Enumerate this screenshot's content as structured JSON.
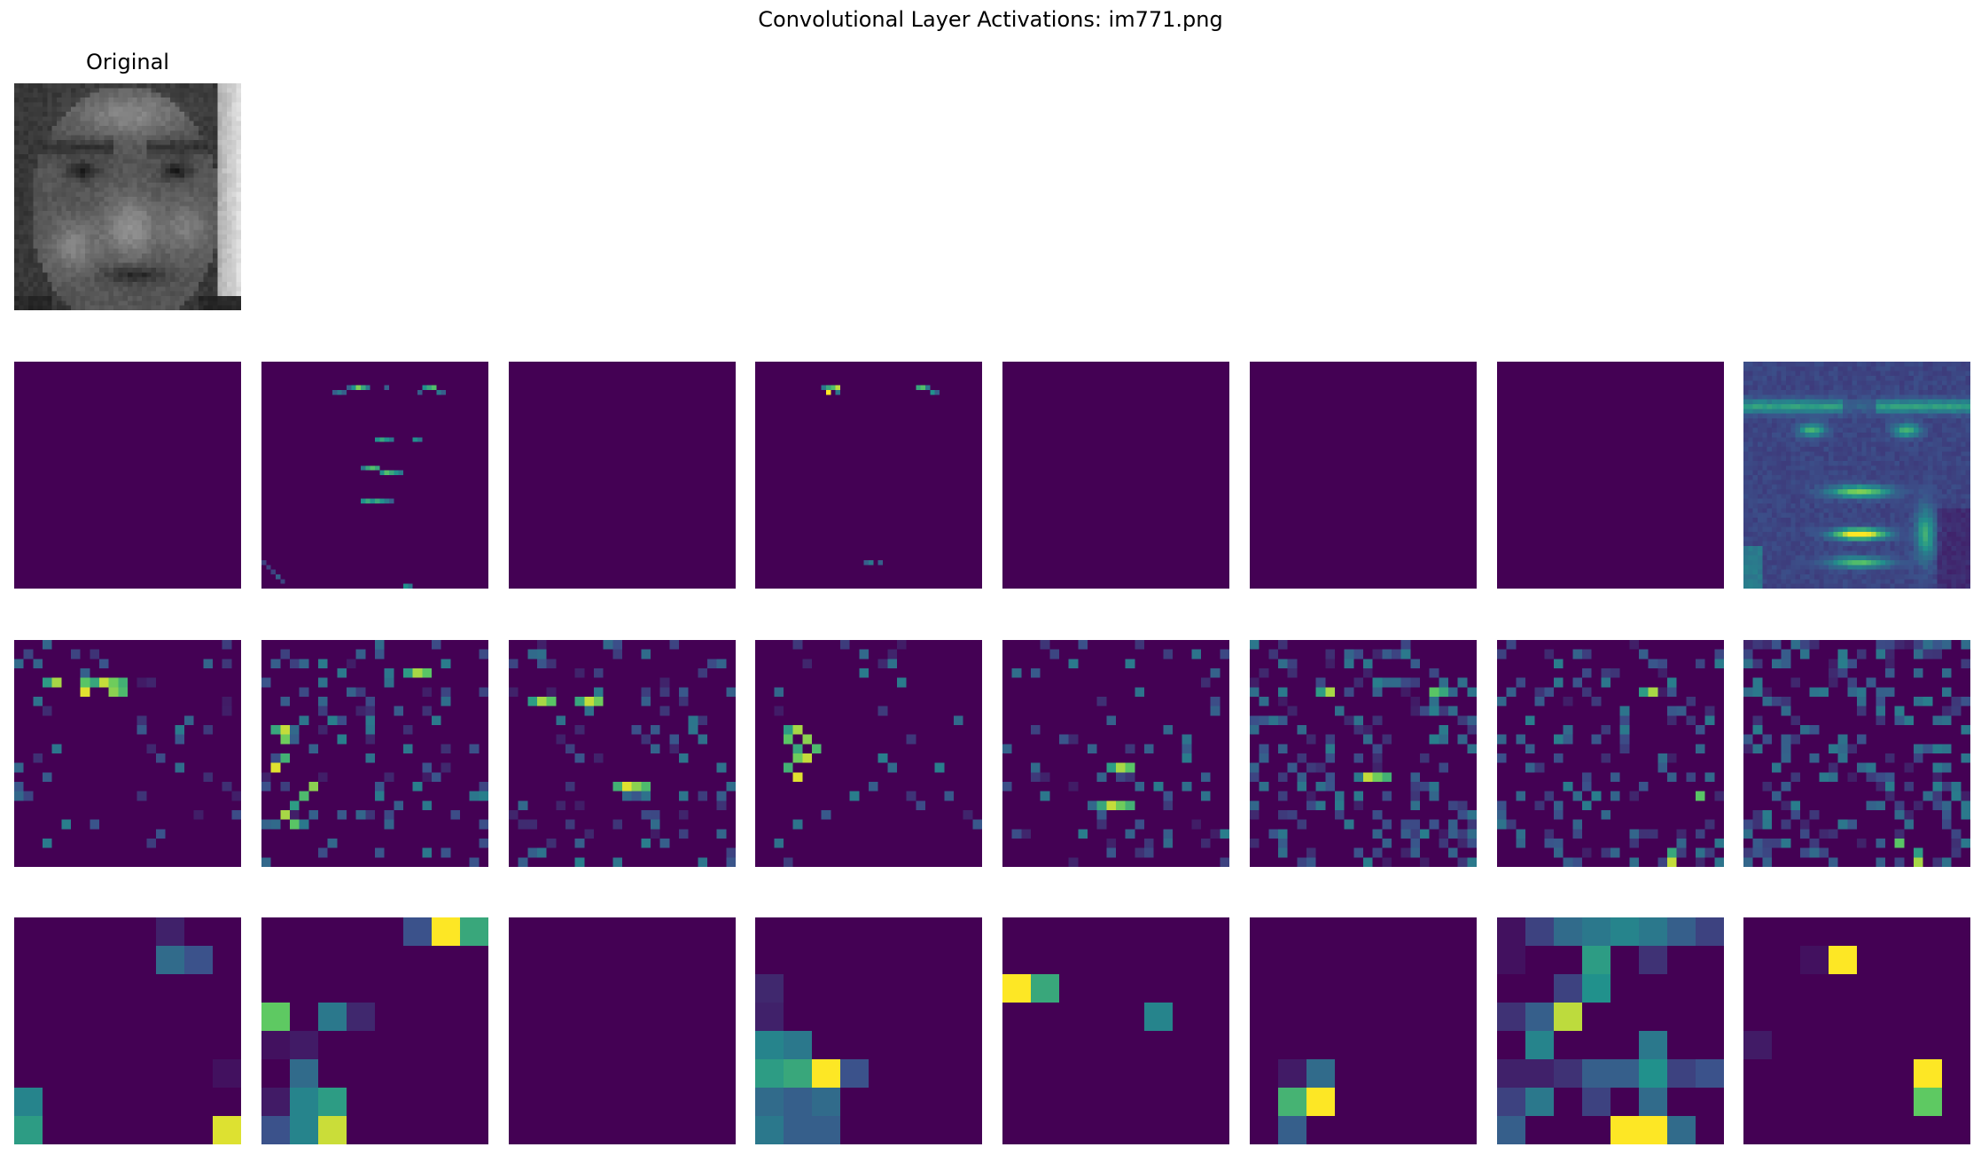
{
  "figure": {
    "suptitle": "Convolutional Layer Activations: im771.png",
    "original_title": "Original"
  },
  "colormap": {
    "name": "viridis",
    "stops": [
      "#440154",
      "#3b528b",
      "#21918c",
      "#5ec962",
      "#fde725"
    ]
  },
  "panels": {
    "original": {
      "type": "grayscale-face",
      "rows": 48,
      "cols": 48
    },
    "layer1": [
      {
        "map": "blank"
      },
      {
        "map": "sparse",
        "values": [
          [
            5,
            18,
            0.3
          ],
          [
            5,
            19,
            0.5
          ],
          [
            5,
            20,
            0.8
          ],
          [
            5,
            21,
            0.6
          ],
          [
            5,
            22,
            0.4
          ],
          [
            6,
            15,
            0.3
          ],
          [
            6,
            16,
            0.4
          ],
          [
            6,
            17,
            0.3
          ],
          [
            5,
            26,
            0.3
          ],
          [
            5,
            34,
            0.5
          ],
          [
            5,
            35,
            0.6
          ],
          [
            5,
            36,
            0.7
          ],
          [
            6,
            37,
            0.4
          ],
          [
            6,
            38,
            0.3
          ],
          [
            6,
            33,
            0.3
          ],
          [
            16,
            24,
            0.5
          ],
          [
            16,
            25,
            0.6
          ],
          [
            16,
            26,
            0.5
          ],
          [
            16,
            27,
            0.4
          ],
          [
            16,
            32,
            0.5
          ],
          [
            16,
            33,
            0.4
          ],
          [
            22,
            21,
            0.4
          ],
          [
            22,
            22,
            0.6
          ],
          [
            22,
            23,
            0.7
          ],
          [
            22,
            24,
            0.6
          ],
          [
            23,
            25,
            0.5
          ],
          [
            23,
            26,
            0.7
          ],
          [
            23,
            27,
            0.6
          ],
          [
            23,
            28,
            0.5
          ],
          [
            23,
            29,
            0.4
          ],
          [
            29,
            21,
            0.5
          ],
          [
            29,
            22,
            0.6
          ],
          [
            29,
            23,
            0.5
          ],
          [
            29,
            24,
            0.6
          ],
          [
            29,
            25,
            0.5
          ],
          [
            29,
            26,
            0.4
          ],
          [
            29,
            27,
            0.3
          ],
          [
            42,
            0,
            0.2
          ],
          [
            43,
            1,
            0.2
          ],
          [
            44,
            2,
            0.2
          ],
          [
            45,
            3,
            0.3
          ],
          [
            46,
            4,
            0.2
          ],
          [
            47,
            30,
            0.5
          ],
          [
            47,
            31,
            0.4
          ]
        ]
      },
      {
        "map": "blank"
      },
      {
        "map": "sparse",
        "values": [
          [
            5,
            14,
            0.4
          ],
          [
            5,
            15,
            0.6
          ],
          [
            5,
            16,
            0.7
          ],
          [
            5,
            17,
            0.9
          ],
          [
            6,
            15,
            1.0
          ],
          [
            6,
            17,
            0.4
          ],
          [
            5,
            34,
            0.6
          ],
          [
            5,
            35,
            0.7
          ],
          [
            5,
            36,
            0.4
          ],
          [
            6,
            37,
            0.5
          ],
          [
            6,
            38,
            0.3
          ],
          [
            42,
            23,
            0.3
          ],
          [
            42,
            24,
            0.4
          ],
          [
            42,
            26,
            0.3
          ]
        ]
      },
      {
        "map": "blank"
      },
      {
        "map": "blank"
      },
      {
        "map": "blank"
      },
      {
        "map": "dense-face",
        "base": 0.18
      }
    ],
    "layer2": [
      {
        "map": "grid",
        "rows": 24,
        "cols": 24,
        "seed": 11,
        "density": 0.08,
        "hot": [
          [
            4,
            3
          ],
          [
            4,
            4
          ],
          [
            4,
            7
          ],
          [
            4,
            8
          ],
          [
            4,
            9
          ],
          [
            4,
            10
          ],
          [
            4,
            11
          ],
          [
            5,
            7
          ],
          [
            5,
            10
          ],
          [
            5,
            11
          ]
        ]
      },
      {
        "map": "grid",
        "rows": 24,
        "cols": 24,
        "seed": 23,
        "density": 0.12,
        "hot": [
          [
            3,
            15
          ],
          [
            3,
            16
          ],
          [
            3,
            17
          ],
          [
            9,
            1
          ],
          [
            9,
            2
          ],
          [
            10,
            2
          ],
          [
            12,
            2
          ],
          [
            13,
            1
          ],
          [
            15,
            5
          ],
          [
            16,
            4
          ],
          [
            17,
            3
          ],
          [
            18,
            2
          ],
          [
            19,
            3
          ]
        ]
      },
      {
        "map": "grid",
        "rows": 24,
        "cols": 24,
        "seed": 37,
        "density": 0.14,
        "hot": [
          [
            6,
            2
          ],
          [
            6,
            3
          ],
          [
            6,
            4
          ],
          [
            6,
            7
          ],
          [
            6,
            8
          ],
          [
            6,
            9
          ],
          [
            15,
            11
          ],
          [
            15,
            12
          ],
          [
            15,
            13
          ],
          [
            15,
            14
          ]
        ]
      },
      {
        "map": "grid",
        "rows": 24,
        "cols": 24,
        "seed": 49,
        "density": 0.06,
        "hot": [
          [
            9,
            3
          ],
          [
            9,
            4
          ],
          [
            10,
            3
          ],
          [
            11,
            4
          ],
          [
            12,
            5
          ],
          [
            12,
            4
          ],
          [
            13,
            3
          ],
          [
            14,
            4
          ],
          [
            10,
            5
          ],
          [
            11,
            6
          ]
        ]
      },
      {
        "map": "grid",
        "rows": 24,
        "cols": 24,
        "seed": 61,
        "density": 0.14,
        "hot": [
          [
            13,
            11
          ],
          [
            13,
            12
          ],
          [
            13,
            13
          ],
          [
            17,
            10
          ],
          [
            17,
            11
          ],
          [
            17,
            12
          ],
          [
            17,
            13
          ]
        ]
      },
      {
        "map": "grid",
        "rows": 24,
        "cols": 24,
        "seed": 73,
        "density": 0.28,
        "hot": [
          [
            5,
            7
          ],
          [
            5,
            8
          ],
          [
            5,
            19
          ],
          [
            5,
            20
          ],
          [
            14,
            12
          ],
          [
            14,
            13
          ],
          [
            14,
            14
          ]
        ]
      },
      {
        "map": "grid",
        "rows": 24,
        "cols": 24,
        "seed": 87,
        "density": 0.2,
        "hot": [
          [
            5,
            15
          ],
          [
            5,
            16
          ],
          [
            16,
            21
          ],
          [
            22,
            18
          ],
          [
            23,
            18
          ]
        ]
      },
      {
        "map": "grid",
        "rows": 24,
        "cols": 24,
        "seed": 97,
        "density": 0.3,
        "hot": [
          [
            22,
            18
          ],
          [
            23,
            18
          ],
          [
            21,
            16
          ]
        ]
      }
    ],
    "layer3": [
      {
        "map": "cells",
        "rows": 8,
        "cols": 8,
        "cells": [
          [
            0,
            5,
            0.1
          ],
          [
            1,
            5,
            0.35
          ],
          [
            1,
            6,
            0.25
          ],
          [
            5,
            7,
            0.05
          ],
          [
            6,
            0,
            0.45
          ],
          [
            7,
            0,
            0.55
          ],
          [
            7,
            7,
            0.95
          ]
        ]
      },
      {
        "map": "cells",
        "rows": 8,
        "cols": 8,
        "cells": [
          [
            0,
            5,
            0.25
          ],
          [
            0,
            6,
            1.0
          ],
          [
            0,
            7,
            0.6
          ],
          [
            3,
            0,
            0.75
          ],
          [
            3,
            2,
            0.4
          ],
          [
            3,
            3,
            0.12
          ],
          [
            4,
            0,
            0.05
          ],
          [
            4,
            1,
            0.08
          ],
          [
            5,
            1,
            0.35
          ],
          [
            6,
            0,
            0.08
          ],
          [
            6,
            1,
            0.45
          ],
          [
            6,
            2,
            0.55
          ],
          [
            7,
            0,
            0.25
          ],
          [
            7,
            1,
            0.45
          ],
          [
            7,
            2,
            0.92
          ]
        ]
      },
      {
        "map": "cells",
        "rows": 8,
        "cols": 8,
        "cells": []
      },
      {
        "map": "cells",
        "rows": 8,
        "cols": 8,
        "cells": [
          [
            2,
            0,
            0.12
          ],
          [
            3,
            0,
            0.1
          ],
          [
            4,
            0,
            0.45
          ],
          [
            4,
            1,
            0.4
          ],
          [
            5,
            0,
            0.55
          ],
          [
            5,
            1,
            0.6
          ],
          [
            5,
            2,
            1.0
          ],
          [
            5,
            3,
            0.25
          ],
          [
            6,
            0,
            0.35
          ],
          [
            6,
            1,
            0.3
          ],
          [
            6,
            2,
            0.35
          ],
          [
            7,
            0,
            0.4
          ],
          [
            7,
            1,
            0.3
          ],
          [
            7,
            2,
            0.3
          ]
        ]
      },
      {
        "map": "cells",
        "rows": 8,
        "cols": 8,
        "cells": [
          [
            2,
            0,
            1.0
          ],
          [
            2,
            1,
            0.6
          ],
          [
            3,
            5,
            0.45
          ]
        ]
      },
      {
        "map": "cells",
        "rows": 8,
        "cols": 8,
        "cells": [
          [
            5,
            1,
            0.08
          ],
          [
            5,
            2,
            0.35
          ],
          [
            6,
            1,
            0.65
          ],
          [
            6,
            2,
            1.0
          ],
          [
            7,
            1,
            0.3
          ]
        ]
      },
      {
        "map": "cells",
        "rows": 8,
        "cols": 8,
        "cells": [
          [
            0,
            0,
            0.05
          ],
          [
            0,
            1,
            0.2
          ],
          [
            0,
            2,
            0.35
          ],
          [
            0,
            3,
            0.4
          ],
          [
            0,
            4,
            0.45
          ],
          [
            0,
            5,
            0.4
          ],
          [
            0,
            6,
            0.3
          ],
          [
            0,
            7,
            0.2
          ],
          [
            1,
            0,
            0.05
          ],
          [
            1,
            3,
            0.55
          ],
          [
            1,
            5,
            0.15
          ],
          [
            2,
            2,
            0.2
          ],
          [
            2,
            3,
            0.5
          ],
          [
            3,
            0,
            0.15
          ],
          [
            3,
            1,
            0.3
          ],
          [
            3,
            2,
            0.9
          ],
          [
            4,
            1,
            0.45
          ],
          [
            4,
            5,
            0.4
          ],
          [
            5,
            0,
            0.1
          ],
          [
            5,
            1,
            0.1
          ],
          [
            5,
            2,
            0.15
          ],
          [
            5,
            3,
            0.3
          ],
          [
            5,
            4,
            0.3
          ],
          [
            5,
            5,
            0.5
          ],
          [
            5,
            6,
            0.2
          ],
          [
            5,
            7,
            0.25
          ],
          [
            6,
            0,
            0.2
          ],
          [
            6,
            1,
            0.4
          ],
          [
            6,
            3,
            0.2
          ],
          [
            6,
            5,
            0.35
          ],
          [
            7,
            0,
            0.3
          ],
          [
            7,
            4,
            1.0
          ],
          [
            7,
            5,
            1.0
          ],
          [
            7,
            6,
            0.35
          ]
        ]
      },
      {
        "map": "cells",
        "rows": 8,
        "cols": 8,
        "cells": [
          [
            1,
            2,
            0.05
          ],
          [
            1,
            3,
            1.0
          ],
          [
            4,
            0,
            0.08
          ],
          [
            5,
            6,
            1.0
          ],
          [
            6,
            6,
            0.75
          ]
        ]
      }
    ]
  }
}
